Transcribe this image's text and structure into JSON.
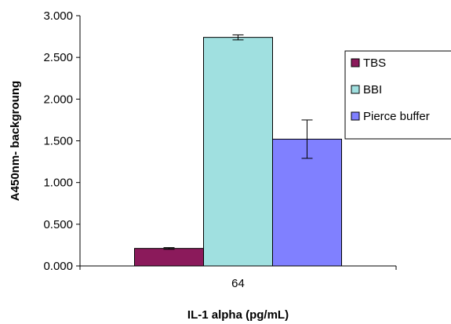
{
  "chart_data": {
    "type": "bar",
    "title": "",
    "xlabel": "IL-1 alpha (pg/mL)",
    "ylabel": "A450nm- backgroung",
    "categories": [
      "64"
    ],
    "ylim": [
      0,
      3.0
    ],
    "yticks": [
      "0.000",
      "0.500",
      "1.000",
      "1.500",
      "2.000",
      "2.500",
      "3.000"
    ],
    "ytick_values": [
      0,
      0.5,
      1.0,
      1.5,
      2.0,
      2.5,
      3.0
    ],
    "grid": false,
    "legend_position": "right",
    "series": [
      {
        "name": "TBS",
        "values": [
          0.21
        ],
        "error": [
          0.01
        ],
        "color": "#8b1a5b"
      },
      {
        "name": "BBI",
        "values": [
          2.74
        ],
        "error": [
          0.03
        ],
        "color": "#a0e0e0"
      },
      {
        "name": "Pierce buffer",
        "values": [
          1.52
        ],
        "error": [
          0.23
        ],
        "color": "#8080ff"
      }
    ]
  }
}
